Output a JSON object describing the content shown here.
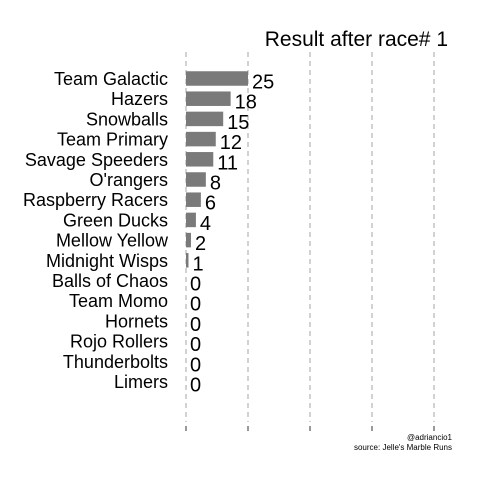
{
  "chart_data": {
    "type": "bar",
    "orientation": "horizontal",
    "title": "Result after race# 1",
    "xlabel": "",
    "ylabel": "",
    "categories": [
      "Team Galactic",
      "Hazers",
      "Snowballs",
      "Team Primary",
      "Savage Speeders",
      "O'rangers",
      "Raspberry Racers",
      "Green Ducks",
      "Mellow Yellow",
      "Midnight Wisps",
      "Balls of Chaos",
      "Team Momo",
      "Hornets",
      "Rojo Rollers",
      "Thunderbolts",
      "Limers"
    ],
    "values": [
      25,
      18,
      15,
      12,
      11,
      8,
      6,
      4,
      2,
      1,
      0,
      0,
      0,
      0,
      0,
      0
    ],
    "xlim": [
      0,
      100
    ],
    "grid_x": [
      0,
      25,
      50,
      75,
      100
    ],
    "grid": true,
    "bar_color": "#7a7a7a",
    "captions": [
      "@adriancio1",
      "source: Jelle's Marble Runs"
    ]
  }
}
